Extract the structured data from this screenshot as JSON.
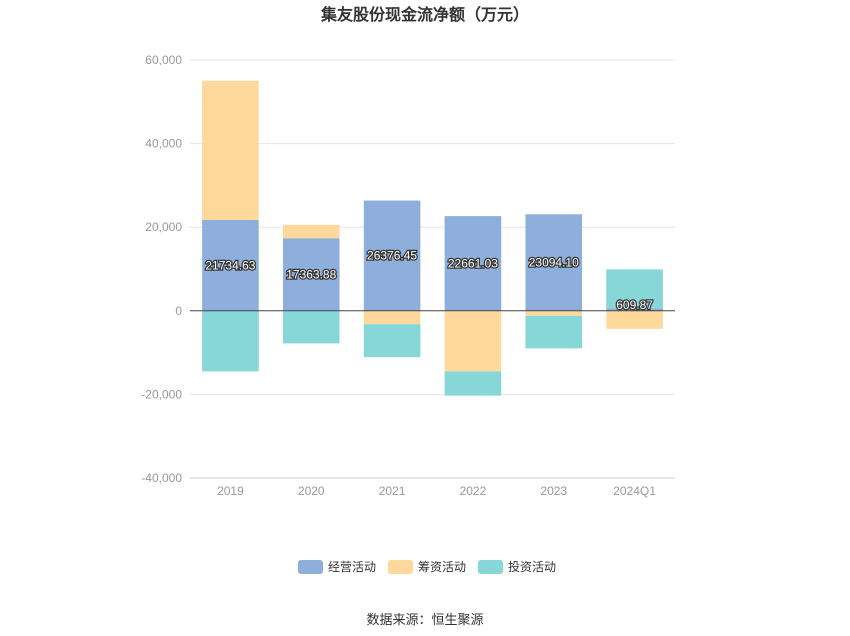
{
  "chart_data": {
    "type": "bar",
    "stacked": true,
    "title": "集友股份现金流净额（万元）",
    "categories": [
      "2019",
      "2020",
      "2021",
      "2022",
      "2023",
      "2024Q1"
    ],
    "ylim": [
      -40000,
      60000
    ],
    "yticks": [
      60000,
      40000,
      20000,
      0,
      -20000,
      -40000
    ],
    "ytick_labels": [
      "60,000",
      "40,000",
      "20,000",
      "0",
      "-20,000",
      "-40,000"
    ],
    "grid": true,
    "legend_position": "bottom",
    "series": [
      {
        "name": "经营活动",
        "color": "#8eaedb",
        "values": [
          21734.63,
          17363.88,
          26376.45,
          22661.03,
          23094.1,
          609.87
        ],
        "labels": [
          "21734.63",
          "17363.88",
          "26376.45",
          "22661.03",
          "23094.10",
          "609.87"
        ]
      },
      {
        "name": "筹资活动",
        "color": "#ffd89b",
        "values": [
          33300,
          3200,
          -3200,
          -14500,
          -1200,
          -4300
        ]
      },
      {
        "name": "投资活动",
        "color": "#87d7d9",
        "values": [
          -14500,
          -7800,
          -7900,
          -5800,
          -7800,
          9300
        ]
      }
    ]
  },
  "source_text": "数据来源：恒生聚源"
}
